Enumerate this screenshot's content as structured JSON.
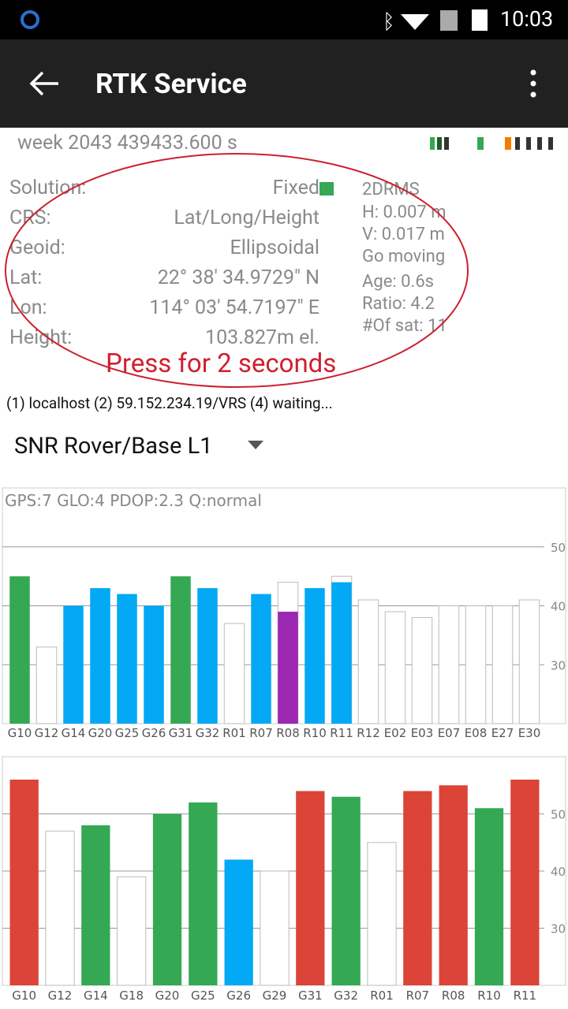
{
  "status_bar": {
    "time": "10:03"
  },
  "app_bar": {
    "title": "RTK Service"
  },
  "week": "week 2043 439433.600 s",
  "info": {
    "rows": [
      [
        "Solution:",
        "Fixed"
      ],
      [
        "CRS:",
        "Lat/Long/Height"
      ],
      [
        "Geoid:",
        "Ellipsoidal"
      ],
      [
        "Lat:",
        "22° 38' 34.9729\" N"
      ],
      [
        "Lon:",
        "114° 03' 54.7197\" E"
      ],
      [
        "Height:",
        "103.827m el."
      ]
    ],
    "side": [
      "2DRMS",
      "H: 0.007 m",
      "V: 0.017 m",
      "Go moving",
      "Age: 0.6s",
      "Ratio: 4.2",
      "#Of sat: 11"
    ],
    "annotation": "Press for 2 seconds"
  },
  "connection": "(1) localhost (2) 59.152.234.19/VRS (4) waiting...",
  "dropdown": "SNR Rover/Base L1",
  "chart_data": [
    {
      "type": "bar",
      "title": "GPS:7 GLO:4 PDOP:2.3 Q:normal",
      "categories": [
        "G10",
        "G12",
        "G14",
        "G20",
        "G25",
        "G26",
        "G31",
        "G32",
        "R01",
        "R07",
        "R08",
        "R10",
        "R11",
        "R12",
        "E02",
        "E03",
        "E07",
        "E08",
        "E27",
        "E30"
      ],
      "series": [
        {
          "values": [
            null,
            33,
            null,
            null,
            null,
            null,
            null,
            null,
            37,
            null,
            44,
            null,
            45,
            41,
            39,
            38,
            40,
            40,
            40,
            41
          ],
          "color": "#ffffff",
          "stroke": "#bbbbbb"
        },
        {
          "values": [
            45,
            null,
            40,
            43,
            42,
            40,
            45,
            43,
            null,
            42,
            39,
            43,
            44,
            null,
            null,
            null,
            null,
            null,
            null,
            null
          ],
          "colors": [
            "#34a853",
            null,
            "#03a9f4",
            "#03a9f4",
            "#03a9f4",
            "#03a9f4",
            "#34a853",
            "#03a9f4",
            null,
            "#03a9f4",
            "#9c27b0",
            "#03a9f4",
            "#03a9f4",
            null,
            null,
            null,
            null,
            null,
            null,
            null
          ]
        }
      ],
      "ylim": [
        20,
        60
      ],
      "yticks": [
        30,
        40,
        50
      ],
      "grid": true
    },
    {
      "type": "bar",
      "categories": [
        "G10",
        "G12",
        "G14",
        "G18",
        "G20",
        "G25",
        "G26",
        "G29",
        "G31",
        "G32",
        "R01",
        "R07",
        "R08",
        "R10",
        "R11"
      ],
      "series": [
        {
          "values": [
            null,
            47,
            null,
            39,
            null,
            null,
            null,
            40,
            null,
            null,
            45,
            null,
            null,
            null,
            null
          ],
          "color": "#ffffff",
          "stroke": "#bbbbbb"
        },
        {
          "values": [
            56,
            null,
            48,
            null,
            50,
            52,
            42,
            null,
            54,
            53,
            null,
            54,
            55,
            51,
            56
          ],
          "colors": [
            "#db4437",
            null,
            "#34a853",
            null,
            "#34a853",
            "#34a853",
            "#03a9f4",
            null,
            "#db4437",
            "#34a853",
            null,
            "#db4437",
            "#db4437",
            "#34a853",
            "#db4437"
          ]
        }
      ],
      "ylim": [
        20,
        60
      ],
      "yticks": [
        30,
        40,
        50
      ],
      "grid": true
    }
  ]
}
